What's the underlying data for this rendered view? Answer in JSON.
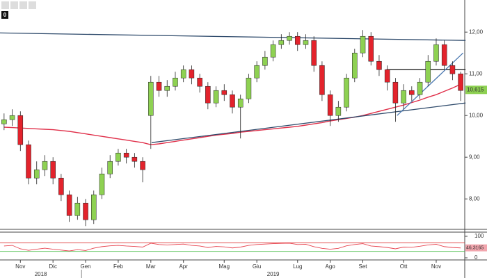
{
  "toolbar": {
    "badge": "0"
  },
  "chart_data": {
    "type": "candlestick",
    "categories": [
      null,
      null,
      "Nov",
      null,
      null,
      null,
      "Dic",
      null,
      null,
      null,
      "Gen",
      null,
      null,
      null,
      "Feb",
      null,
      null,
      null,
      "Mar",
      null,
      null,
      null,
      "Apr",
      null,
      null,
      null,
      null,
      "Mag",
      null,
      null,
      null,
      "Giu",
      null,
      null,
      null,
      null,
      "Lug",
      null,
      null,
      null,
      "Ago",
      null,
      null,
      null,
      "Set",
      null,
      null,
      null,
      null,
      "Ott",
      null,
      null,
      null,
      "Nov",
      null,
      null,
      null
    ],
    "years": [
      "2018",
      "2019"
    ],
    "open": [
      9.8,
      9.9,
      10.0,
      9.3,
      8.5,
      8.7,
      8.9,
      8.5,
      8.1,
      7.6,
      7.9,
      7.5,
      8.1,
      8.6,
      8.9,
      9.1,
      9.0,
      8.9,
      10.0,
      10.8,
      10.6,
      10.7,
      10.9,
      11.1,
      10.9,
      10.7,
      10.3,
      10.6,
      10.5,
      10.2,
      10.4,
      10.9,
      11.2,
      11.4,
      11.7,
      11.8,
      11.9,
      11.7,
      11.8,
      11.2,
      10.5,
      10.0,
      10.2,
      10.9,
      11.5,
      11.9,
      11.3,
      11.1,
      10.8,
      10.3,
      10.6,
      10.5,
      10.8,
      11.3,
      11.7,
      11.2,
      11.0
    ],
    "high": [
      10.05,
      10.15,
      10.1,
      9.4,
      8.9,
      9.05,
      9.0,
      8.6,
      8.2,
      8.05,
      8.0,
      8.2,
      8.75,
      9.05,
      9.2,
      9.2,
      9.1,
      9.0,
      10.95,
      10.95,
      10.85,
      11.05,
      11.2,
      11.2,
      11.0,
      10.8,
      10.7,
      10.75,
      10.6,
      10.5,
      11.0,
      11.3,
      11.55,
      11.8,
      11.95,
      12.0,
      12.0,
      11.95,
      11.9,
      11.3,
      10.6,
      10.35,
      11.0,
      11.6,
      12.05,
      12.0,
      11.45,
      11.2,
      10.9,
      10.75,
      10.7,
      10.9,
      11.45,
      11.85,
      11.8,
      11.3,
      11.05
    ],
    "low": [
      9.65,
      9.75,
      9.15,
      8.35,
      8.35,
      8.55,
      8.35,
      7.95,
      7.45,
      7.5,
      7.35,
      7.4,
      8.0,
      8.5,
      8.8,
      8.85,
      8.75,
      8.4,
      9.2,
      10.45,
      10.45,
      10.6,
      10.8,
      10.75,
      10.55,
      10.15,
      10.2,
      10.35,
      10.05,
      9.45,
      10.3,
      10.8,
      11.1,
      11.3,
      11.6,
      11.7,
      11.55,
      11.6,
      11.05,
      10.35,
      9.75,
      9.85,
      10.1,
      10.8,
      11.4,
      11.2,
      10.95,
      10.6,
      9.85,
      10.15,
      10.35,
      10.4,
      10.7,
      11.2,
      11.1,
      10.85,
      10.35
    ],
    "close": [
      9.9,
      10.0,
      9.3,
      8.5,
      8.7,
      8.9,
      8.5,
      8.1,
      7.6,
      7.9,
      7.5,
      8.1,
      8.6,
      8.9,
      9.1,
      9.0,
      8.9,
      8.7,
      10.8,
      10.6,
      10.7,
      10.9,
      11.1,
      10.9,
      10.7,
      10.3,
      10.6,
      10.5,
      10.2,
      10.4,
      10.9,
      11.2,
      11.4,
      11.7,
      11.8,
      11.9,
      11.7,
      11.8,
      11.2,
      10.5,
      10.0,
      10.2,
      10.9,
      11.5,
      11.9,
      11.3,
      11.1,
      10.8,
      10.3,
      10.6,
      10.5,
      10.8,
      11.3,
      11.7,
      11.2,
      11.0,
      10.6
    ],
    "up_color": "#8ed152",
    "down_color": "#e3232c",
    "moving_average": {
      "color": "#e0304a",
      "values": [
        9.72,
        9.71,
        9.7,
        9.69,
        9.68,
        9.67,
        9.66,
        9.64,
        9.62,
        9.59,
        9.56,
        9.53,
        9.5,
        9.47,
        9.44,
        9.41,
        9.38,
        9.35,
        9.3,
        9.32,
        9.35,
        9.38,
        9.41,
        9.44,
        9.47,
        9.5,
        9.53,
        9.55,
        9.57,
        9.6,
        9.62,
        9.64,
        9.66,
        9.68,
        9.7,
        9.72,
        9.74,
        9.77,
        9.8,
        9.83,
        9.87,
        9.9,
        9.93,
        9.96,
        10.0,
        10.05,
        10.1,
        10.15,
        10.2,
        10.25,
        10.31,
        10.37,
        10.44,
        10.5,
        10.58,
        10.66,
        10.75
      ]
    },
    "trendlines": [
      {
        "color": "#2e4a6b",
        "x": [
          -0.5,
          56.6
        ],
        "y": [
          11.98,
          11.8
        ]
      },
      {
        "color": "#2e4a6b",
        "x": [
          18.1,
          56.6
        ],
        "y": [
          9.35,
          10.3
        ]
      },
      {
        "color": "#222222",
        "x": [
          46.9,
          56.6
        ],
        "y": [
          11.1,
          11.1
        ]
      },
      {
        "color": "#4a78b0",
        "x": [
          48.2,
          56.3
        ],
        "y": [
          10.0,
          11.5
        ]
      }
    ],
    "ylim": [
      7.27,
      12.77
    ],
    "yticks": [
      {
        "value": 8,
        "label": "8,00"
      },
      {
        "value": 9,
        "label": "9,00"
      },
      {
        "value": 10,
        "label": "10,00"
      },
      {
        "value": 11,
        "label": "11,00"
      },
      {
        "value": 12,
        "label": "12,00"
      }
    ],
    "last_value": {
      "value": 10.615,
      "label": "10,615"
    },
    "rsi": {
      "color": "#e8434f",
      "ylim": [
        0,
        100
      ],
      "yticks": [
        0,
        100
      ],
      "upper": 70,
      "lower": 30,
      "values": [
        55,
        58,
        42,
        35,
        40,
        45,
        40,
        36,
        32,
        38,
        34,
        45,
        52,
        56,
        58,
        55,
        53,
        50,
        68,
        62,
        60,
        62,
        64,
        58,
        55,
        48,
        53,
        51,
        46,
        50,
        58,
        62,
        64,
        66,
        67,
        68,
        62,
        63,
        52,
        44,
        40,
        44,
        56,
        62,
        66,
        55,
        52,
        48,
        42,
        50,
        49,
        54,
        60,
        63,
        52,
        48,
        46
      ],
      "last": {
        "value": 46.3165,
        "label": "46,3165"
      }
    }
  }
}
